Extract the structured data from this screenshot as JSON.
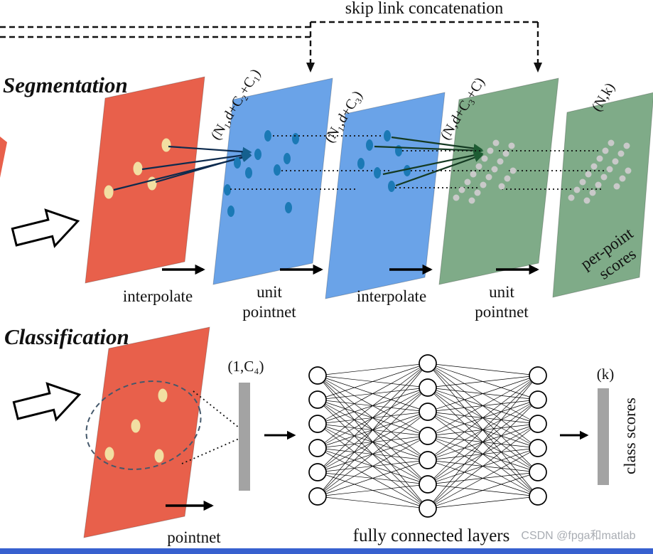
{
  "figure": {
    "skip_link_label": "skip link concatenation",
    "watermark": "CSDN @fpga和matlab"
  },
  "segmentation": {
    "title": "Segmentation",
    "plane_labels": {
      "fp1": "(N₁,d+C₂+C₁)",
      "fp2": "(N₁,d+C₃)",
      "fp3": "(N,d+C₃+C)",
      "output": "(N,k)"
    },
    "steps": [
      {
        "lines": [
          "interpolate"
        ]
      },
      {
        "lines": [
          "unit",
          "pointnet"
        ]
      },
      {
        "lines": [
          "interpolate"
        ]
      },
      {
        "lines": [
          "unit",
          "pointnet"
        ]
      }
    ],
    "output_caption": {
      "lines": [
        "per-point",
        "scores"
      ]
    }
  },
  "classification": {
    "title": "Classification",
    "feature_vector_label": "(1,C₄)",
    "step_label": "pointnet",
    "fc_caption": "fully connected layers",
    "fc_network": {
      "layers": [
        6,
        7,
        6
      ]
    },
    "output_vector_label": "(k)",
    "output_caption": "class scores"
  },
  "colors": {
    "plane_red": "#e8604b",
    "plane_blue": "#6aa3e8",
    "plane_green": "#7fab88",
    "point_yellow": "#f2dfa2",
    "point_blue": "#1b79b5",
    "point_gray": "#c9c9c9",
    "bar_gray": "#a3a3a3",
    "bottom_bar_blue": "#3760cf"
  }
}
